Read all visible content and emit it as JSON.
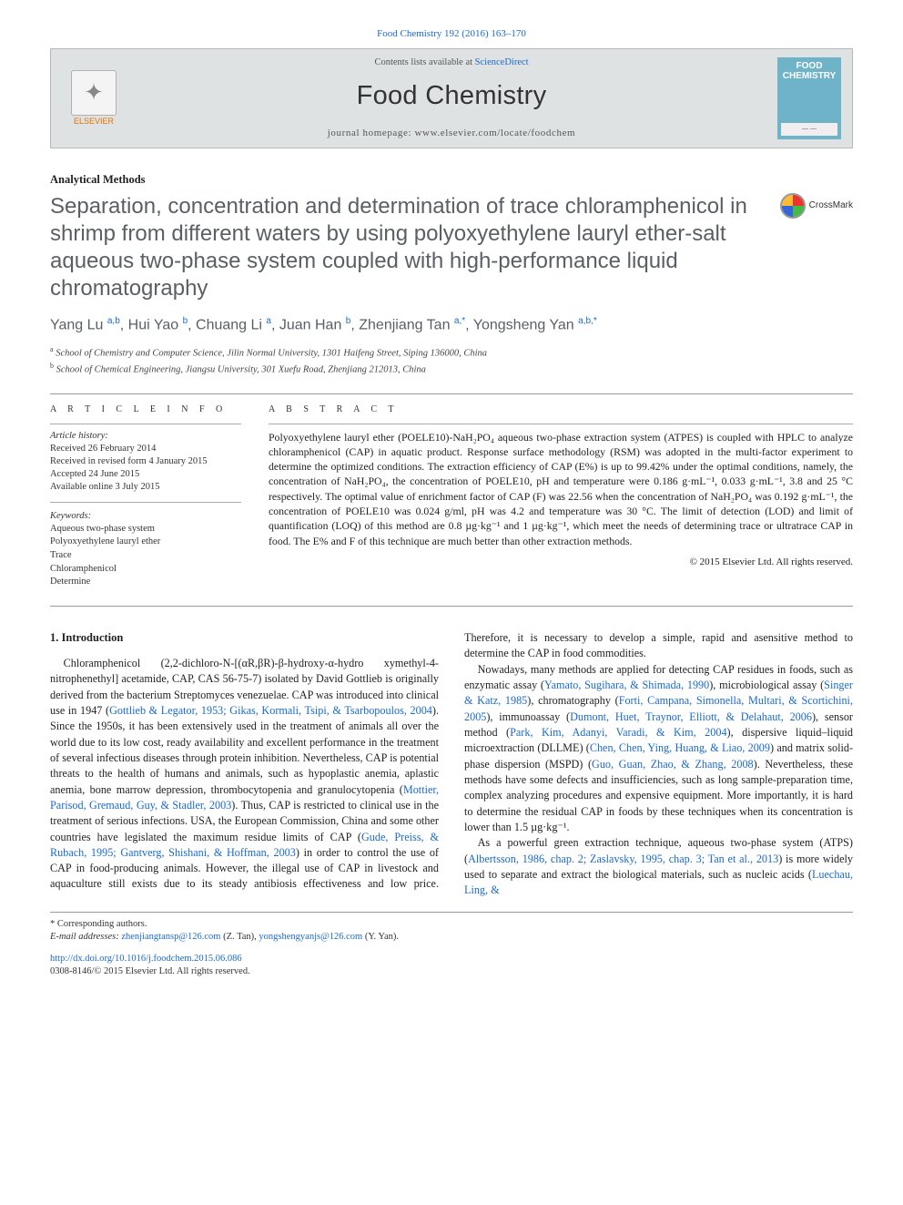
{
  "citation": "Food Chemistry 192 (2016) 163–170",
  "header": {
    "contents_prefix": "Contents lists available at ",
    "contents_link": "ScienceDirect",
    "journal": "Food Chemistry",
    "homepage_prefix": "journal homepage: ",
    "homepage": "www.elsevier.com/locate/foodchem",
    "publisher_name": "ELSEVIER",
    "cover_title": "FOOD CHEMISTRY"
  },
  "article": {
    "type_label": "Analytical Methods",
    "title": "Separation, concentration and determination of trace chloramphenicol in shrimp from different waters by using polyoxyethylene lauryl ether-salt aqueous two-phase system coupled with high-performance liquid chromatography",
    "crossmark": "CrossMark"
  },
  "authors_html": "Yang Lu <sup>a,b</sup>, Hui Yao <sup>b</sup>, Chuang Li <sup>a</sup>, Juan Han <sup>b</sup>, Zhenjiang Tan <sup>a,</sup><sup class=\"star\">*</sup>, Yongsheng Yan <sup>a,b,</sup><sup class=\"star\">*</sup>",
  "affiliations": [
    {
      "tag": "a",
      "text": "School of Chemistry and Computer Science, Jilin Normal University, 1301 Haifeng Street, Siping 136000, China"
    },
    {
      "tag": "b",
      "text": "School of Chemical Engineering, Jiangsu University, 301 Xuefu Road, Zhenjiang 212013, China"
    }
  ],
  "info": {
    "head": "A R T I C L E   I N F O",
    "history_label": "Article history:",
    "history": [
      "Received 26 February 2014",
      "Received in revised form 4 January 2015",
      "Accepted 24 June 2015",
      "Available online 3 July 2015"
    ],
    "keywords_label": "Keywords:",
    "keywords": [
      "Aqueous two-phase system",
      "Polyoxyethylene lauryl ether",
      "Trace",
      "Chloramphenicol",
      "Determine"
    ]
  },
  "abstract": {
    "head": "A B S T R A C T",
    "text": "Polyoxyethylene lauryl ether (POELE10)-NaH₂PO₄ aqueous two-phase extraction system (ATPES) is coupled with HPLC to analyze chloramphenicol (CAP) in aquatic product. Response surface methodology (RSM) was adopted in the multi-factor experiment to determine the optimized conditions. The extraction efficiency of CAP (E%) is up to 99.42% under the optimal conditions, namely, the concentration of NaH₂PO₄, the concentration of POELE10, pH and temperature were 0.186 g·mL⁻¹, 0.033 g·mL⁻¹, 3.8 and 25 °C respectively. The optimal value of enrichment factor of CAP (F) was 22.56 when the concentration of NaH₂PO₄ was 0.192 g·mL⁻¹, the concentration of POELE10 was 0.024 g/ml, pH was 4.2 and temperature was 30 °C. The limit of detection (LOD) and limit of quantification (LOQ) of this method are 0.8 µg·kg⁻¹ and 1 µg·kg⁻¹, which meet the needs of determining trace or ultratrace CAP in food. The E% and F of this technique are much better than other extraction methods.",
    "copyright": "© 2015 Elsevier Ltd. All rights reserved."
  },
  "body": {
    "heading1": "1. Introduction",
    "p1a": "Chloramphenicol (2,2-dichloro-N-[(αR,βR)-β-hydroxy-α-hydro xymethyl-4-nitrophenethyl] acetamide, CAP, CAS 56-75-7) isolated by David Gottlieb is originally derived from the bacterium Streptomyces venezuelae. CAP was introduced into clinical use in 1947 (",
    "ref1": "Gottlieb & Legator, 1953; Gikas, Kormali, Tsipi, & Tsarbopoulos, 2004",
    "p1b": "). Since the 1950s, it has been extensively used in the treatment of animals all over the world due to its low cost, ready availability and excellent performance in the treatment of several infectious diseases through protein inhibition. Nevertheless, CAP is potential threats to the health of humans and animals, such as hypoplastic anemia, aplastic anemia, bone marrow depression, thrombocytopenia and granulocytopenia (",
    "ref2": "Mottier, Parisod, Gremaud, Guy, & Stadler, 2003",
    "p1c": "). Thus, CAP is restricted to clinical use in the treatment of serious infections. USA, the European Commission, China and some other countries have legislated the maximum residue limits of CAP (",
    "ref3": "Gude, Preiss, & Rubach, 1995; Gantverg, Shishani, & Hoffman, 2003",
    "p1d": ") in order to control the use of CAP in food-producing animals. However, the illegal use of CAP in livestock and aquaculture still exists due to its steady antibiosis effectiveness and low price. Therefore, it is necessary to develop a simple, rapid and asensitive method to determine the CAP in food commodities.",
    "p2a": "Nowadays, many methods are applied for detecting CAP residues in foods, such as enzymatic assay (",
    "ref4": "Yamato, Sugihara, & Shimada, 1990",
    "p2b": "), microbiological assay (",
    "ref5": "Singer & Katz, 1985",
    "p2c": "), chromatography (",
    "ref6": "Forti, Campana, Simonella, Multari, & Scortichini, 2005",
    "p2d": "), immunoassay (",
    "ref7": "Dumont, Huet, Traynor, Elliott, & Delahaut, 2006",
    "p2e": "), sensor method (",
    "ref8": "Park, Kim, Adanyi, Varadi, & Kim, 2004",
    "p2f": "), dispersive liquid–liquid microextraction (DLLME) (",
    "ref9": "Chen, Chen, Ying, Huang, & Liao, 2009",
    "p2g": ") and matrix solid-phase dispersion (MSPD) (",
    "ref10": "Guo, Guan, Zhao, & Zhang, 2008",
    "p2h": "). Nevertheless, these methods have some defects and insufficiencies, such as long sample-preparation time, complex analyzing procedures and expensive equipment. More importantly, it is hard to determine the residual CAP in foods by these techniques when its concentration is lower than 1.5 µg·kg⁻¹.",
    "p3a": "As a powerful green extraction technique, aqueous two-phase system (ATPS) (",
    "ref11": "Albertsson, 1986, chap. 2; Zaslavsky, 1995, chap. 3; Tan et al., 2013",
    "p3b": ") is more widely used to separate and extract the biological materials, such as nucleic acids (",
    "ref12": "Luechau, Ling, &"
  },
  "footnotes": {
    "corr_label": "* Corresponding authors.",
    "email_label": "E-mail addresses:",
    "email1": "zhenjiangtansp@126.com",
    "email1_who": " (Z. Tan), ",
    "email2": "yongshengyanjs@126.com",
    "email2_who": " (Y. Yan)."
  },
  "doi": {
    "url": "http://dx.doi.org/10.1016/j.foodchem.2015.06.086",
    "issn": "0308-8146/© 2015 Elsevier Ltd. All rights reserved."
  }
}
